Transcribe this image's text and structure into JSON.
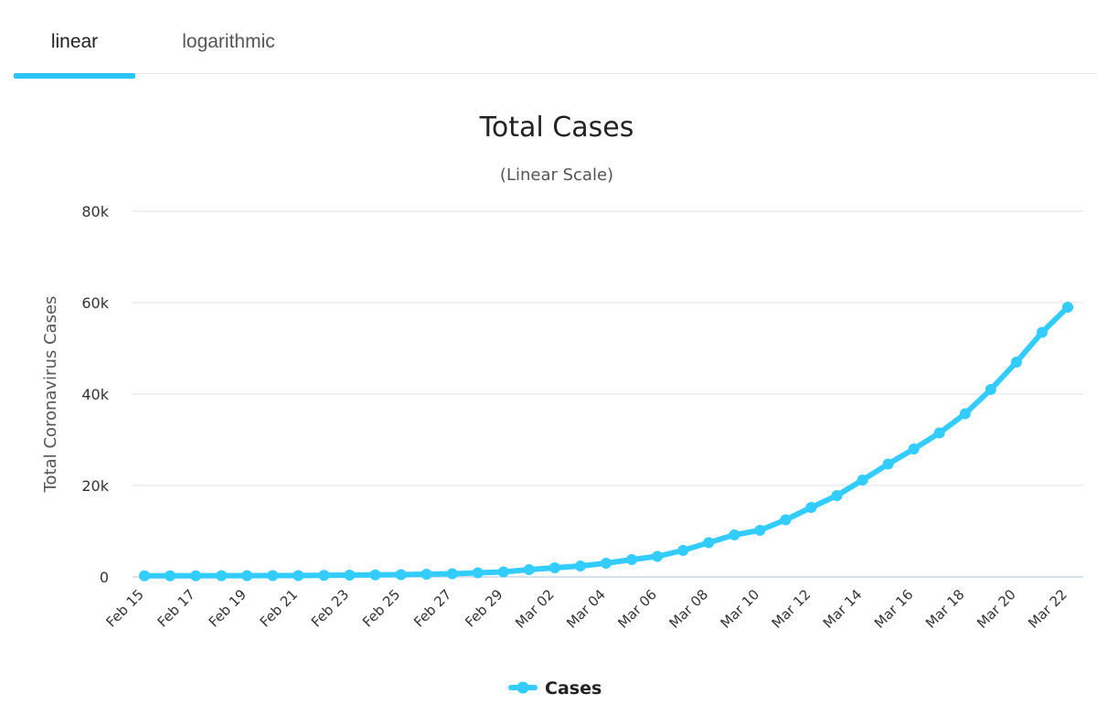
{
  "tabs": [
    {
      "label": "linear",
      "active": true
    },
    {
      "label": "logarithmic",
      "active": false
    }
  ],
  "colors": {
    "accent": "#2bc4f5",
    "series": "#33ccff"
  },
  "chart_data": {
    "type": "line",
    "title": "Total Cases",
    "subtitle": "(Linear Scale)",
    "xlabel": "",
    "ylabel": "Total Coronavirus Cases",
    "ylim": [
      0,
      80000
    ],
    "yticks": [
      0,
      20000,
      40000,
      60000,
      80000
    ],
    "ytick_labels": [
      "0",
      "20k",
      "40k",
      "60k",
      "80k"
    ],
    "grid": true,
    "legend_position": "bottom-center",
    "x": [
      "Feb 15",
      "Feb 16",
      "Feb 17",
      "Feb 18",
      "Feb 19",
      "Feb 20",
      "Feb 21",
      "Feb 22",
      "Feb 23",
      "Feb 24",
      "Feb 25",
      "Feb 26",
      "Feb 27",
      "Feb 28",
      "Feb 29",
      "Mar 01",
      "Mar 02",
      "Mar 03",
      "Mar 04",
      "Mar 05",
      "Mar 06",
      "Mar 07",
      "Mar 08",
      "Mar 09",
      "Mar 10",
      "Mar 11",
      "Mar 12",
      "Mar 13",
      "Mar 14",
      "Mar 15",
      "Mar 16",
      "Mar 17",
      "Mar 18",
      "Mar 19",
      "Mar 20",
      "Mar 21",
      "Mar 22"
    ],
    "x_tick_labels": [
      "Feb 15",
      "Feb 17",
      "Feb 19",
      "Feb 21",
      "Feb 23",
      "Feb 25",
      "Feb 27",
      "Feb 29",
      "Mar 02",
      "Mar 04",
      "Mar 06",
      "Mar 08",
      "Mar 10",
      "Mar 12",
      "Mar 14",
      "Mar 16",
      "Mar 18",
      "Mar 20",
      "Mar 22"
    ],
    "series": [
      {
        "name": "Cases",
        "color": "#33ccff",
        "values": [
          250,
          250,
          260,
          270,
          280,
          290,
          300,
          350,
          400,
          450,
          500,
          600,
          700,
          900,
          1100,
          1600,
          2000,
          2400,
          3000,
          3800,
          4500,
          5800,
          7500,
          9200,
          10200,
          12500,
          15200,
          17800,
          21200,
          24700,
          28000,
          31500,
          35700,
          41000,
          47000,
          53500,
          59000
        ]
      }
    ]
  }
}
